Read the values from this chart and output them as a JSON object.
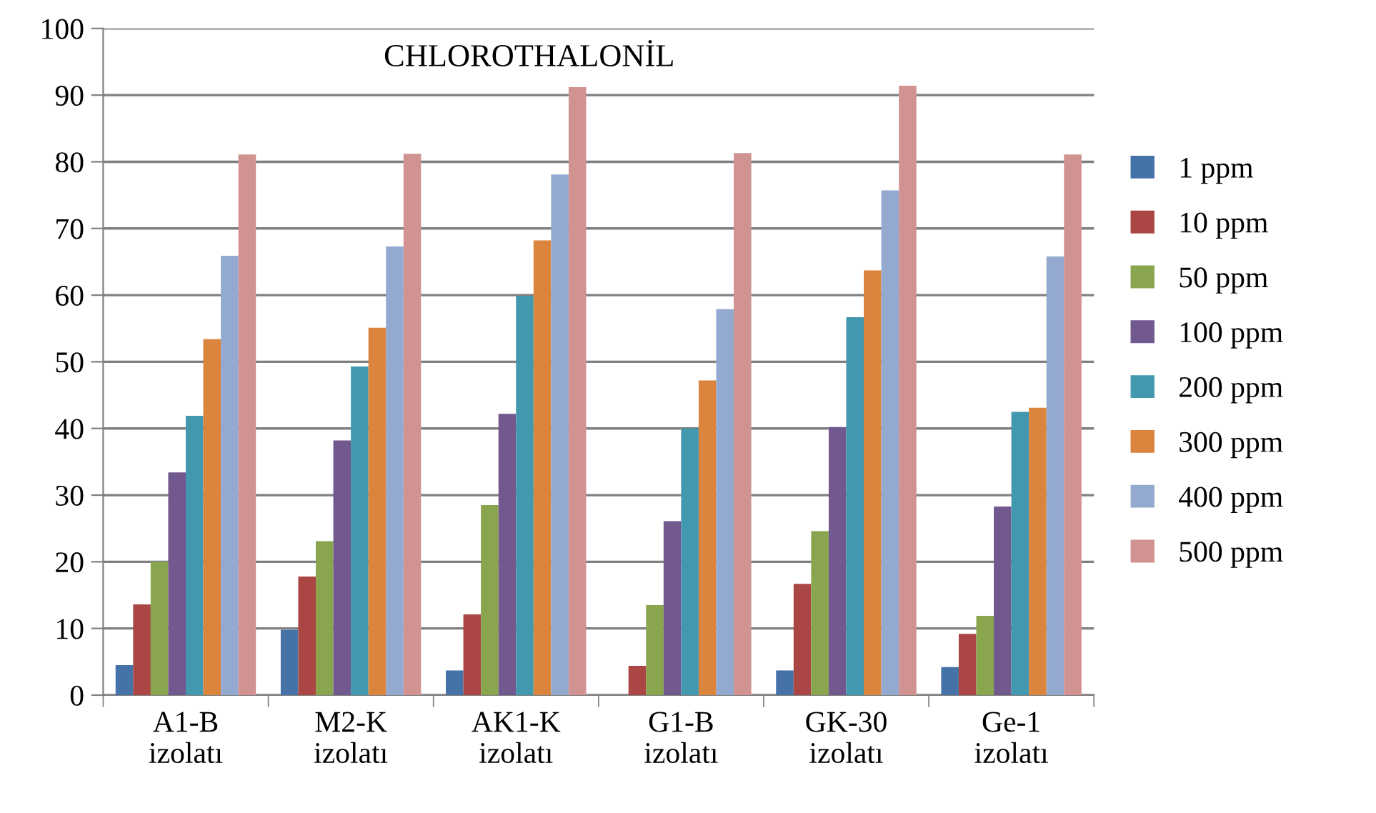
{
  "chart_data": {
    "type": "bar",
    "title": "CHLOROTHALONİL",
    "categories": [
      "A1-B\nizolatı",
      "M2-K\nizolatı",
      "AK1-K\nizolatı",
      "G1-B\nizolatı",
      "GK-30\nizolatı",
      "Ge-1\nizolatı"
    ],
    "series": [
      {
        "name": "1 ppm",
        "color": "#4572a7",
        "values": [
          4.5,
          9.8,
          3.7,
          0,
          3.7,
          4.2
        ]
      },
      {
        "name": "10 ppm",
        "color": "#aa4643",
        "values": [
          13.6,
          17.8,
          12.1,
          4.4,
          16.7,
          9.2
        ]
      },
      {
        "name": "50 ppm",
        "color": "#89a54e",
        "values": [
          20,
          23.1,
          28.5,
          13.5,
          24.6,
          11.9
        ]
      },
      {
        "name": "100 ppm",
        "color": "#71588f",
        "values": [
          33.4,
          38.2,
          42.2,
          26.1,
          40.2,
          28.3
        ]
      },
      {
        "name": "200 ppm",
        "color": "#4198af",
        "values": [
          41.9,
          49.3,
          59.9,
          40,
          56.7,
          42.5
        ]
      },
      {
        "name": "300 ppm",
        "color": "#db843d",
        "values": [
          53.4,
          55.1,
          68.2,
          47.2,
          63.7,
          43.1
        ]
      },
      {
        "name": "400 ppm",
        "color": "#93a9cf",
        "values": [
          65.9,
          67.3,
          78.1,
          57.9,
          75.7,
          65.8
        ]
      },
      {
        "name": "500 ppm",
        "color": "#d19392",
        "values": [
          81.1,
          81.2,
          91.2,
          81.3,
          91.4,
          81.1
        ]
      }
    ],
    "ylim": [
      0,
      100
    ],
    "yticks": [
      0,
      10,
      20,
      30,
      40,
      50,
      60,
      70,
      80,
      90,
      100
    ],
    "grid": "y",
    "legend": "right"
  }
}
